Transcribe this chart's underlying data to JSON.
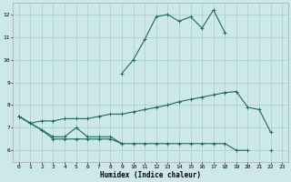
{
  "title": "",
  "xlabel": "Humidex (Indice chaleur)",
  "ylabel": "",
  "background_color": "#cce8e8",
  "grid_color": "#aacccc",
  "line_color": "#1a6b5a",
  "x_values": [
    0,
    1,
    2,
    3,
    4,
    5,
    6,
    7,
    8,
    9,
    10,
    11,
    12,
    13,
    14,
    15,
    16,
    17,
    18,
    19,
    20,
    21,
    22,
    23
  ],
  "series1": [
    7.5,
    7.2,
    6.9,
    6.6,
    6.6,
    7.0,
    6.6,
    6.6,
    6.6,
    6.3,
    null,
    null,
    null,
    null,
    null,
    null,
    null,
    null,
    null,
    null,
    null,
    null,
    null,
    null
  ],
  "series2": [
    7.5,
    7.2,
    6.9,
    6.5,
    6.5,
    6.5,
    6.5,
    6.5,
    6.5,
    6.3,
    6.3,
    6.3,
    6.3,
    6.3,
    6.3,
    6.3,
    6.3,
    6.3,
    6.3,
    6.0,
    6.0,
    null,
    6.0,
    null
  ],
  "series3": [
    7.5,
    7.2,
    7.3,
    7.3,
    7.4,
    7.4,
    7.4,
    7.5,
    7.6,
    7.6,
    7.7,
    7.8,
    7.9,
    8.0,
    8.15,
    8.25,
    8.35,
    8.45,
    8.55,
    8.6,
    7.9,
    7.8,
    6.8,
    null
  ],
  "series4": [
    7.5,
    null,
    null,
    null,
    null,
    null,
    null,
    null,
    null,
    9.4,
    10.0,
    10.9,
    11.9,
    12.0,
    11.7,
    11.9,
    11.4,
    12.2,
    11.2,
    null,
    null,
    null,
    null,
    null
  ],
  "xlim": [
    -0.5,
    23.5
  ],
  "ylim": [
    5.5,
    12.5
  ],
  "yticks": [
    6,
    7,
    8,
    9,
    10,
    11,
    12
  ],
  "xticks": [
    0,
    1,
    2,
    3,
    4,
    5,
    6,
    7,
    8,
    9,
    10,
    11,
    12,
    13,
    14,
    15,
    16,
    17,
    18,
    19,
    20,
    21,
    22,
    23
  ],
  "xlabel_fontsize": 5.5,
  "tick_fontsize": 4.5,
  "linewidth": 0.8,
  "markersize": 2.5,
  "markeredgewidth": 0.7
}
